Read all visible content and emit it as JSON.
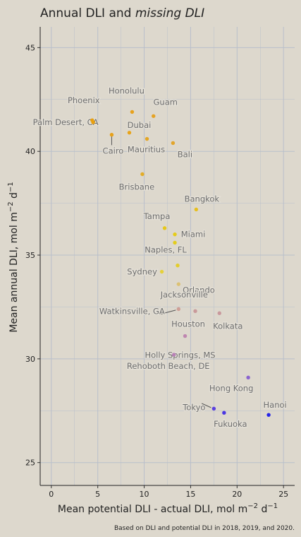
{
  "chart_data": {
    "type": "scatter",
    "title_prefix": "Annual DLI and ",
    "title_italic": "missing DLI",
    "xlabel": "Mean potential DLI - actual DLI, mol m",
    "xlabel_sup": "−2",
    "xlabel_end": " d",
    "xlabel_sup2": "−1",
    "ylabel": "Mean annual DLI, mol m",
    "ylabel_sup": "−2",
    "ylabel_end": " d",
    "ylabel_sup2": "−1",
    "caption": "Based on DLI and potential DLI in 2018, 2019, and 2020.",
    "xlim": [
      -1.2,
      26.2
    ],
    "ylim": [
      23.9,
      46.0
    ],
    "x_ticks": [
      0,
      5,
      10,
      15,
      20,
      25
    ],
    "y_ticks": [
      25,
      30,
      35,
      40,
      45
    ],
    "grid": true,
    "color_low": "#e09c0e",
    "color_mid": "#d8cf16",
    "color_high": "#1d22e0",
    "text_color": "#222222",
    "label_color": "#6e6e6e",
    "grid_color": "#b9bfcb",
    "points": [
      {
        "name": "Phoenix",
        "x": 4.4,
        "y": 41.5,
        "color": "#e9a00f"
      },
      {
        "name": "Palm Desert, CA",
        "x": 4.5,
        "y": 41.4,
        "color": "#e9a00f"
      },
      {
        "name": "Cairo",
        "x": 6.5,
        "y": 40.8,
        "color": "#e7a11a"
      },
      {
        "name": "Honolulu",
        "x": 8.7,
        "y": 41.9,
        "color": "#e7a21c"
      },
      {
        "name": "Dubai",
        "x": 8.4,
        "y": 40.9,
        "color": "#e8a41a"
      },
      {
        "name": "Guam",
        "x": 11.0,
        "y": 41.7,
        "color": "#e5a325"
      },
      {
        "name": "Mauritius",
        "x": 10.3,
        "y": 40.6,
        "color": "#e3a624"
      },
      {
        "name": "Bali",
        "x": 13.1,
        "y": 40.4,
        "color": "#e2a52b"
      },
      {
        "name": "Brisbane",
        "x": 9.8,
        "y": 38.9,
        "color": "#e3ad28"
      },
      {
        "name": "Bangkok",
        "x": 15.6,
        "y": 37.2,
        "color": "#e7bf1f"
      },
      {
        "name": "Tampa",
        "x": 12.2,
        "y": 36.3,
        "color": "#e6c71b"
      },
      {
        "name": "Miami",
        "x": 13.3,
        "y": 36.0,
        "color": "#e5cc19"
      },
      {
        "name": "Naples, FL",
        "x": 13.3,
        "y": 35.6,
        "color": "#e3cd1c"
      },
      {
        "name": "Orlando",
        "x": 13.6,
        "y": 34.5,
        "color": "#e3cd2b"
      },
      {
        "name": "Sydney",
        "x": 11.9,
        "y": 34.2,
        "color": "#e5d13a"
      },
      {
        "name": "Jacksonville",
        "x": 13.7,
        "y": 33.6,
        "color": "#dcc173"
      },
      {
        "name": "Watkinsville, GA",
        "x": 13.7,
        "y": 32.4,
        "color": "#cf9f96"
      },
      {
        "name": "Houston",
        "x": 15.5,
        "y": 32.3,
        "color": "#c99a9b"
      },
      {
        "name": "Kolkata",
        "x": 18.1,
        "y": 32.2,
        "color": "#c9999d"
      },
      {
        "name": "Holly Springs, MS",
        "x": 14.4,
        "y": 31.1,
        "color": "#bf86b0"
      },
      {
        "name": "Rehoboth Beach, DE",
        "x": 13.2,
        "y": 30.2,
        "color": "#b880b6"
      },
      {
        "name": "Hong Kong",
        "x": 21.2,
        "y": 29.1,
        "color": "#8a63cf"
      },
      {
        "name": "Tokyo",
        "x": 17.5,
        "y": 27.6,
        "color": "#5a3fe0"
      },
      {
        "name": "Fukuoka",
        "x": 18.6,
        "y": 27.4,
        "color": "#4a36e3"
      },
      {
        "name": "Hanoi",
        "x": 23.4,
        "y": 27.3,
        "color": "#2323e8"
      }
    ]
  }
}
